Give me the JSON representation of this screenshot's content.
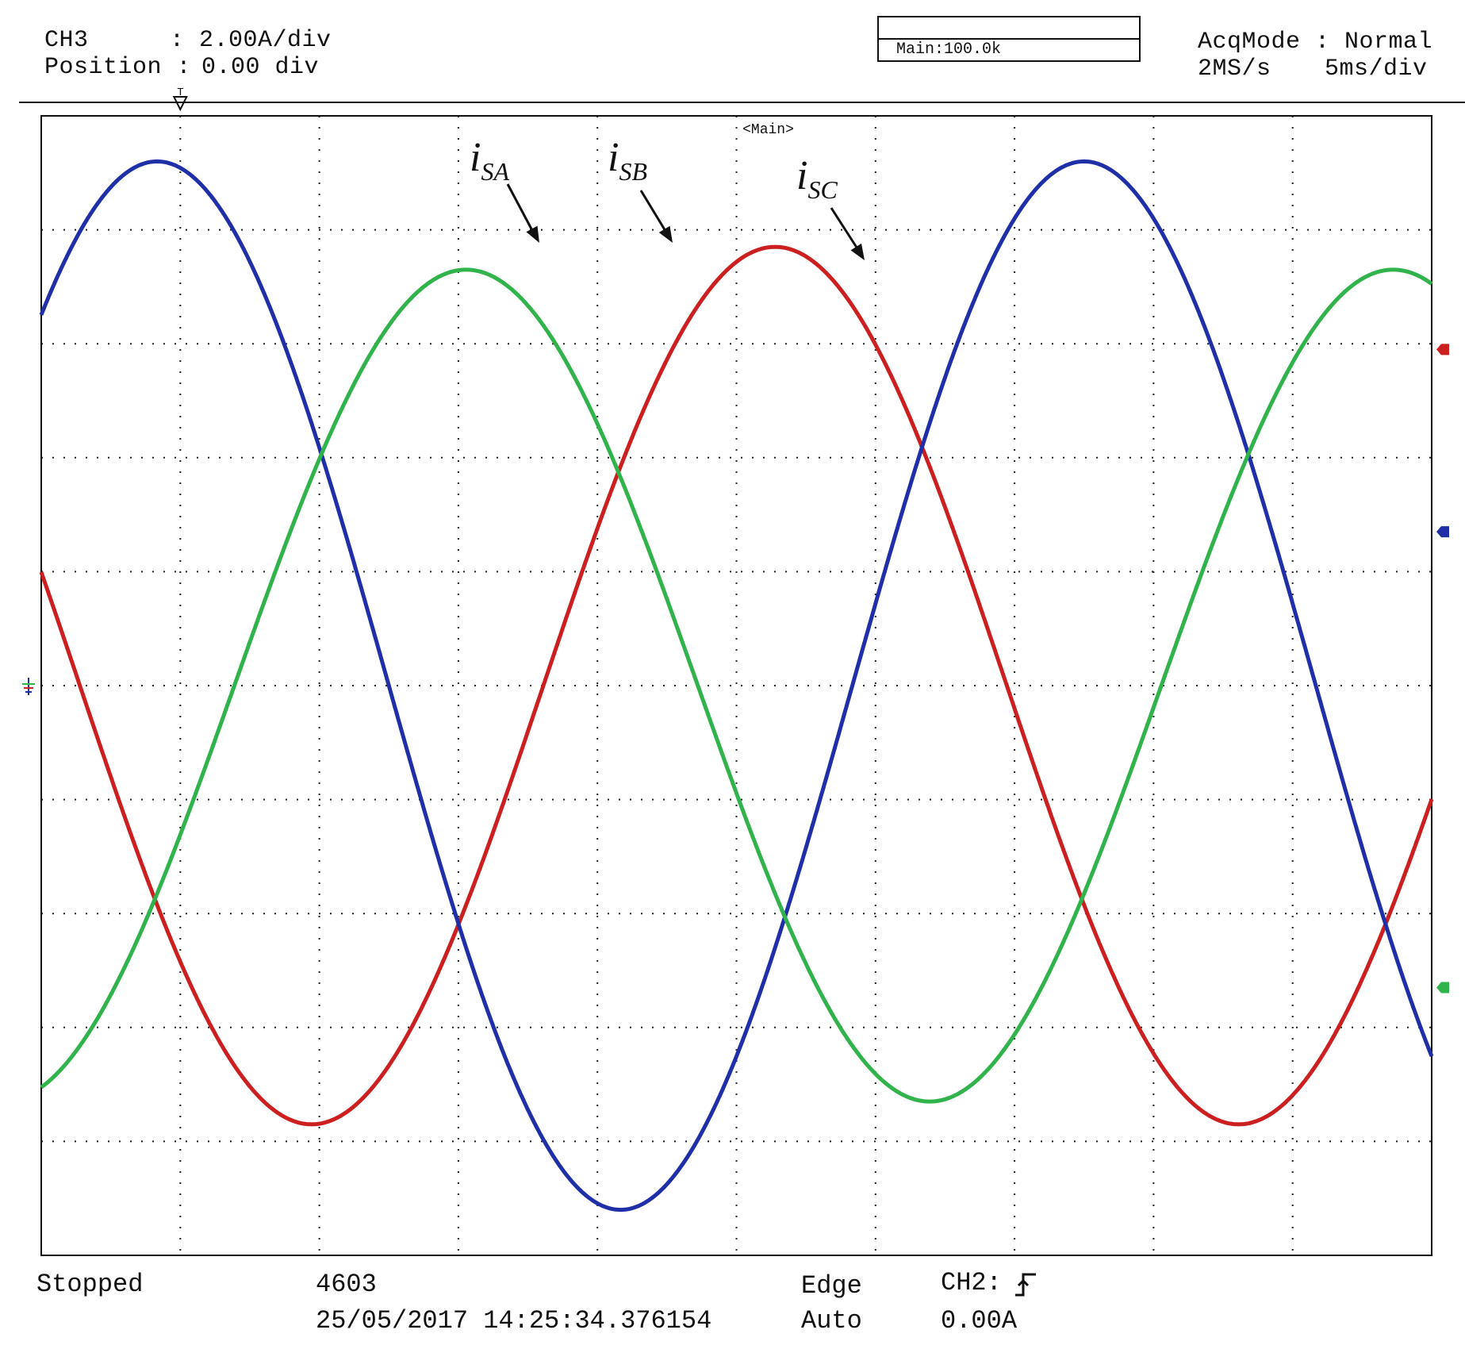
{
  "header": {
    "channel": "CH3",
    "scale": ": 2.00A/div",
    "position_label": "Position :",
    "position_value": "0.00 div",
    "acq_mode": "AcqMode : Normal",
    "sample_rate": "2MS/s",
    "timebase": "5ms/div",
    "record": "Main:100.0k",
    "trigger_marker": "T",
    "zoom_label": "<Main>"
  },
  "footer": {
    "status": "Stopped",
    "count": "4603",
    "timestamp": "25/05/2017 14:25:34.376154",
    "trigger_type": "Edge",
    "trigger_mode": "Auto",
    "trigger_source": "CH2:",
    "trigger_level": "0.00A"
  },
  "colors": {
    "background": "#ffffff",
    "grid": "#222222",
    "i_SA": "#cc1f1f",
    "i_SB": "#1f2fa8",
    "i_SC": "#2fb34a"
  },
  "chart_data": {
    "type": "line",
    "title": "",
    "xlabel": "",
    "ylabel": "",
    "xlim": [
      0,
      50
    ],
    "ylim": [
      -10,
      10
    ],
    "x_unit": "ms",
    "y_unit": "A",
    "grid": true,
    "grid_divisions": {
      "x": 10,
      "y": 10
    },
    "series": [
      {
        "name": "i_SA",
        "label_main": "i",
        "label_sub": "SA",
        "color": "#cc1f1f",
        "amplitude": 7.7,
        "frequency_hz": 30,
        "phase_deg": 165,
        "offset": 0
      },
      {
        "name": "i_SB",
        "label_main": "i",
        "label_sub": "SB",
        "color": "#1f2fa8",
        "amplitude": 9.2,
        "frequency_hz": 30,
        "phase_deg": 45,
        "offset": 0
      },
      {
        "name": "i_SC",
        "label_main": "i",
        "label_sub": "SC",
        "color": "#2fb34a",
        "amplitude": 7.3,
        "frequency_hz": 30,
        "phase_deg": -75,
        "offset": 0
      }
    ]
  }
}
